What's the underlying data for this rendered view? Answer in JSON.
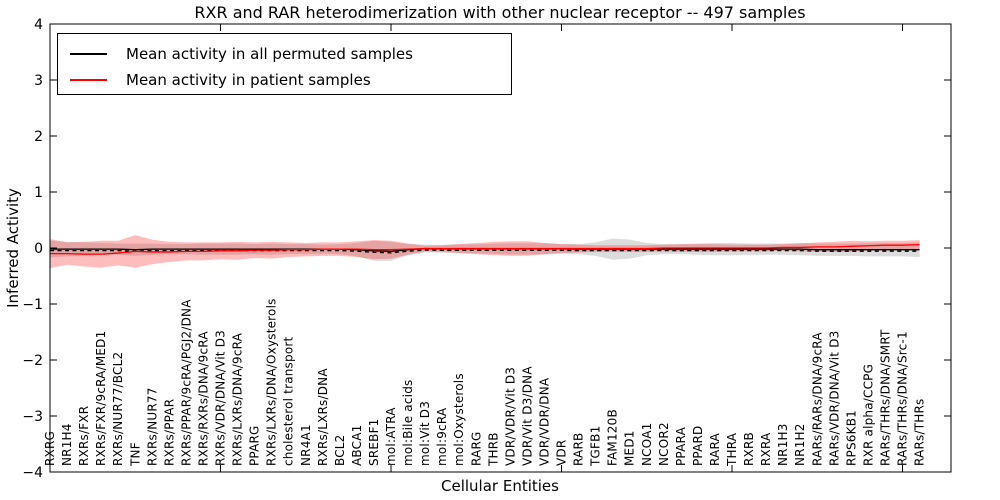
{
  "title": "RXR and RAR heterodimerization with other nuclear receptor -- 497 samples",
  "legend": {
    "items": [
      {
        "label": "Mean activity in all permuted samples",
        "color": "#000000"
      },
      {
        "label": "Mean activity in patient samples",
        "color": "#ff0000"
      }
    ]
  },
  "chart_data": {
    "type": "line",
    "title": "RXR and RAR heterodimerization with other nuclear receptor -- 497 samples",
    "xlabel": "Cellular Entities",
    "ylabel": "Inferred Activity",
    "ylim": [
      -4,
      4
    ],
    "yticks": [
      -4,
      -3,
      -2,
      -1,
      0,
      1,
      2,
      3,
      4
    ],
    "xtick_indices": [
      10,
      20,
      30,
      40,
      50
    ],
    "grid": false,
    "legend_position": "upper left",
    "categories": [
      "RXRG",
      "NR1H4",
      "RXRs/FXR",
      "RXRs/FXR/9cRA/MED1",
      "RXRs/NUR77/BCL2",
      "TNF",
      "RXRs/NUR77",
      "RXRs/PPAR",
      "RXRs/PPAR/9cRA/PGJ2/DNA",
      "RXRs/RXRs/DNA/9cRA",
      "RXRs/VDR/DNA/Vit D3",
      "RXRs/LXRs/DNA/9cRA",
      "PPARG",
      "RXRs/LXRs/DNA/Oxysterols",
      "cholesterol transport",
      "NR4A1",
      "RXRs/LXRs/DNA",
      "BCL2",
      "ABCA1",
      "SREBF1",
      "mol:ATRA",
      "mol:Bile acids",
      "mol:Vit D3",
      "mol:9cRA",
      "mol:Oxysterols",
      "RARG",
      "THRB",
      "VDR/VDR/Vit D3",
      "VDR/Vit D3/DNA",
      "VDR/VDR/DNA",
      "VDR",
      "RARB",
      "TGFB1",
      "FAM120B",
      "MED1",
      "NCOA1",
      "NCOR2",
      "PPARA",
      "PPARD",
      "RARA",
      "THRA",
      "RXRB",
      "RXRA",
      "NR1H3",
      "NR1H2",
      "RARs/RARs/DNA/9cRA",
      "RARs/VDR/DNA/Vit D3",
      "RPS6KB1",
      "RXR alpha/CCPG",
      "RARs/THRs/DNA/SMRT",
      "RARs/THRs/DNA/Src-1",
      "RARs/THRs"
    ],
    "series": [
      {
        "name": "Mean activity in all permuted samples",
        "color": "#000000",
        "band_color": "#9a9a9a",
        "band_opacity": 0.35,
        "dashed_overlay": true,
        "values": [
          -0.02,
          -0.02,
          -0.02,
          -0.02,
          -0.02,
          -0.03,
          -0.02,
          -0.02,
          -0.02,
          -0.02,
          -0.02,
          -0.02,
          -0.02,
          -0.02,
          -0.02,
          -0.02,
          -0.02,
          -0.02,
          -0.03,
          -0.05,
          -0.06,
          -0.03,
          -0.01,
          -0.015,
          -0.015,
          -0.015,
          -0.015,
          -0.015,
          -0.015,
          -0.015,
          -0.015,
          -0.02,
          -0.02,
          -0.02,
          -0.02,
          -0.02,
          -0.02,
          -0.02,
          -0.02,
          -0.02,
          -0.02,
          -0.02,
          -0.02,
          -0.02,
          -0.02,
          -0.03,
          -0.03,
          -0.03,
          -0.03,
          -0.03,
          -0.03,
          -0.03
        ],
        "band_halfwidth": [
          0.15,
          0.13,
          0.12,
          0.11,
          0.1,
          0.11,
          0.1,
          0.09,
          0.09,
          0.1,
          0.1,
          0.1,
          0.09,
          0.1,
          0.09,
          0.09,
          0.08,
          0.09,
          0.12,
          0.18,
          0.17,
          0.1,
          0.07,
          0.07,
          0.08,
          0.08,
          0.09,
          0.1,
          0.1,
          0.1,
          0.09,
          0.09,
          0.12,
          0.19,
          0.17,
          0.11,
          0.09,
          0.09,
          0.1,
          0.11,
          0.11,
          0.1,
          0.1,
          0.1,
          0.11,
          0.11,
          0.11,
          0.11,
          0.12,
          0.12,
          0.12,
          0.13
        ]
      },
      {
        "name": "Mean activity in patient samples",
        "color": "#ff0000",
        "band_color": "#ff2020",
        "band_opacity": 0.3,
        "dashed_overlay": false,
        "values": [
          -0.1,
          -0.1,
          -0.11,
          -0.11,
          -0.09,
          -0.06,
          -0.07,
          -0.07,
          -0.06,
          -0.06,
          -0.05,
          -0.05,
          -0.04,
          -0.04,
          -0.03,
          -0.03,
          -0.02,
          -0.02,
          -0.02,
          -0.03,
          -0.03,
          -0.02,
          -0.01,
          -0.01,
          -0.01,
          -0.01,
          -0.01,
          -0.01,
          -0.01,
          -0.01,
          -0.01,
          -0.01,
          -0.01,
          -0.01,
          -0.01,
          -0.01,
          0.0,
          0.0,
          0.0,
          0.0,
          0.0,
          0.0,
          0.0,
          0.01,
          0.01,
          0.02,
          0.02,
          0.03,
          0.04,
          0.05,
          0.05,
          0.06
        ],
        "band_halfwidth": [
          0.26,
          0.2,
          0.22,
          0.24,
          0.22,
          0.29,
          0.22,
          0.18,
          0.16,
          0.16,
          0.15,
          0.16,
          0.14,
          0.15,
          0.13,
          0.12,
          0.12,
          0.12,
          0.14,
          0.17,
          0.16,
          0.1,
          0.05,
          0.06,
          0.08,
          0.1,
          0.12,
          0.13,
          0.13,
          0.1,
          0.08,
          0.07,
          0.06,
          0.06,
          0.06,
          0.06,
          0.06,
          0.07,
          0.07,
          0.07,
          0.06,
          0.06,
          0.06,
          0.06,
          0.07,
          0.08,
          0.09,
          0.1,
          0.08,
          0.08,
          0.08,
          0.08
        ]
      }
    ]
  }
}
